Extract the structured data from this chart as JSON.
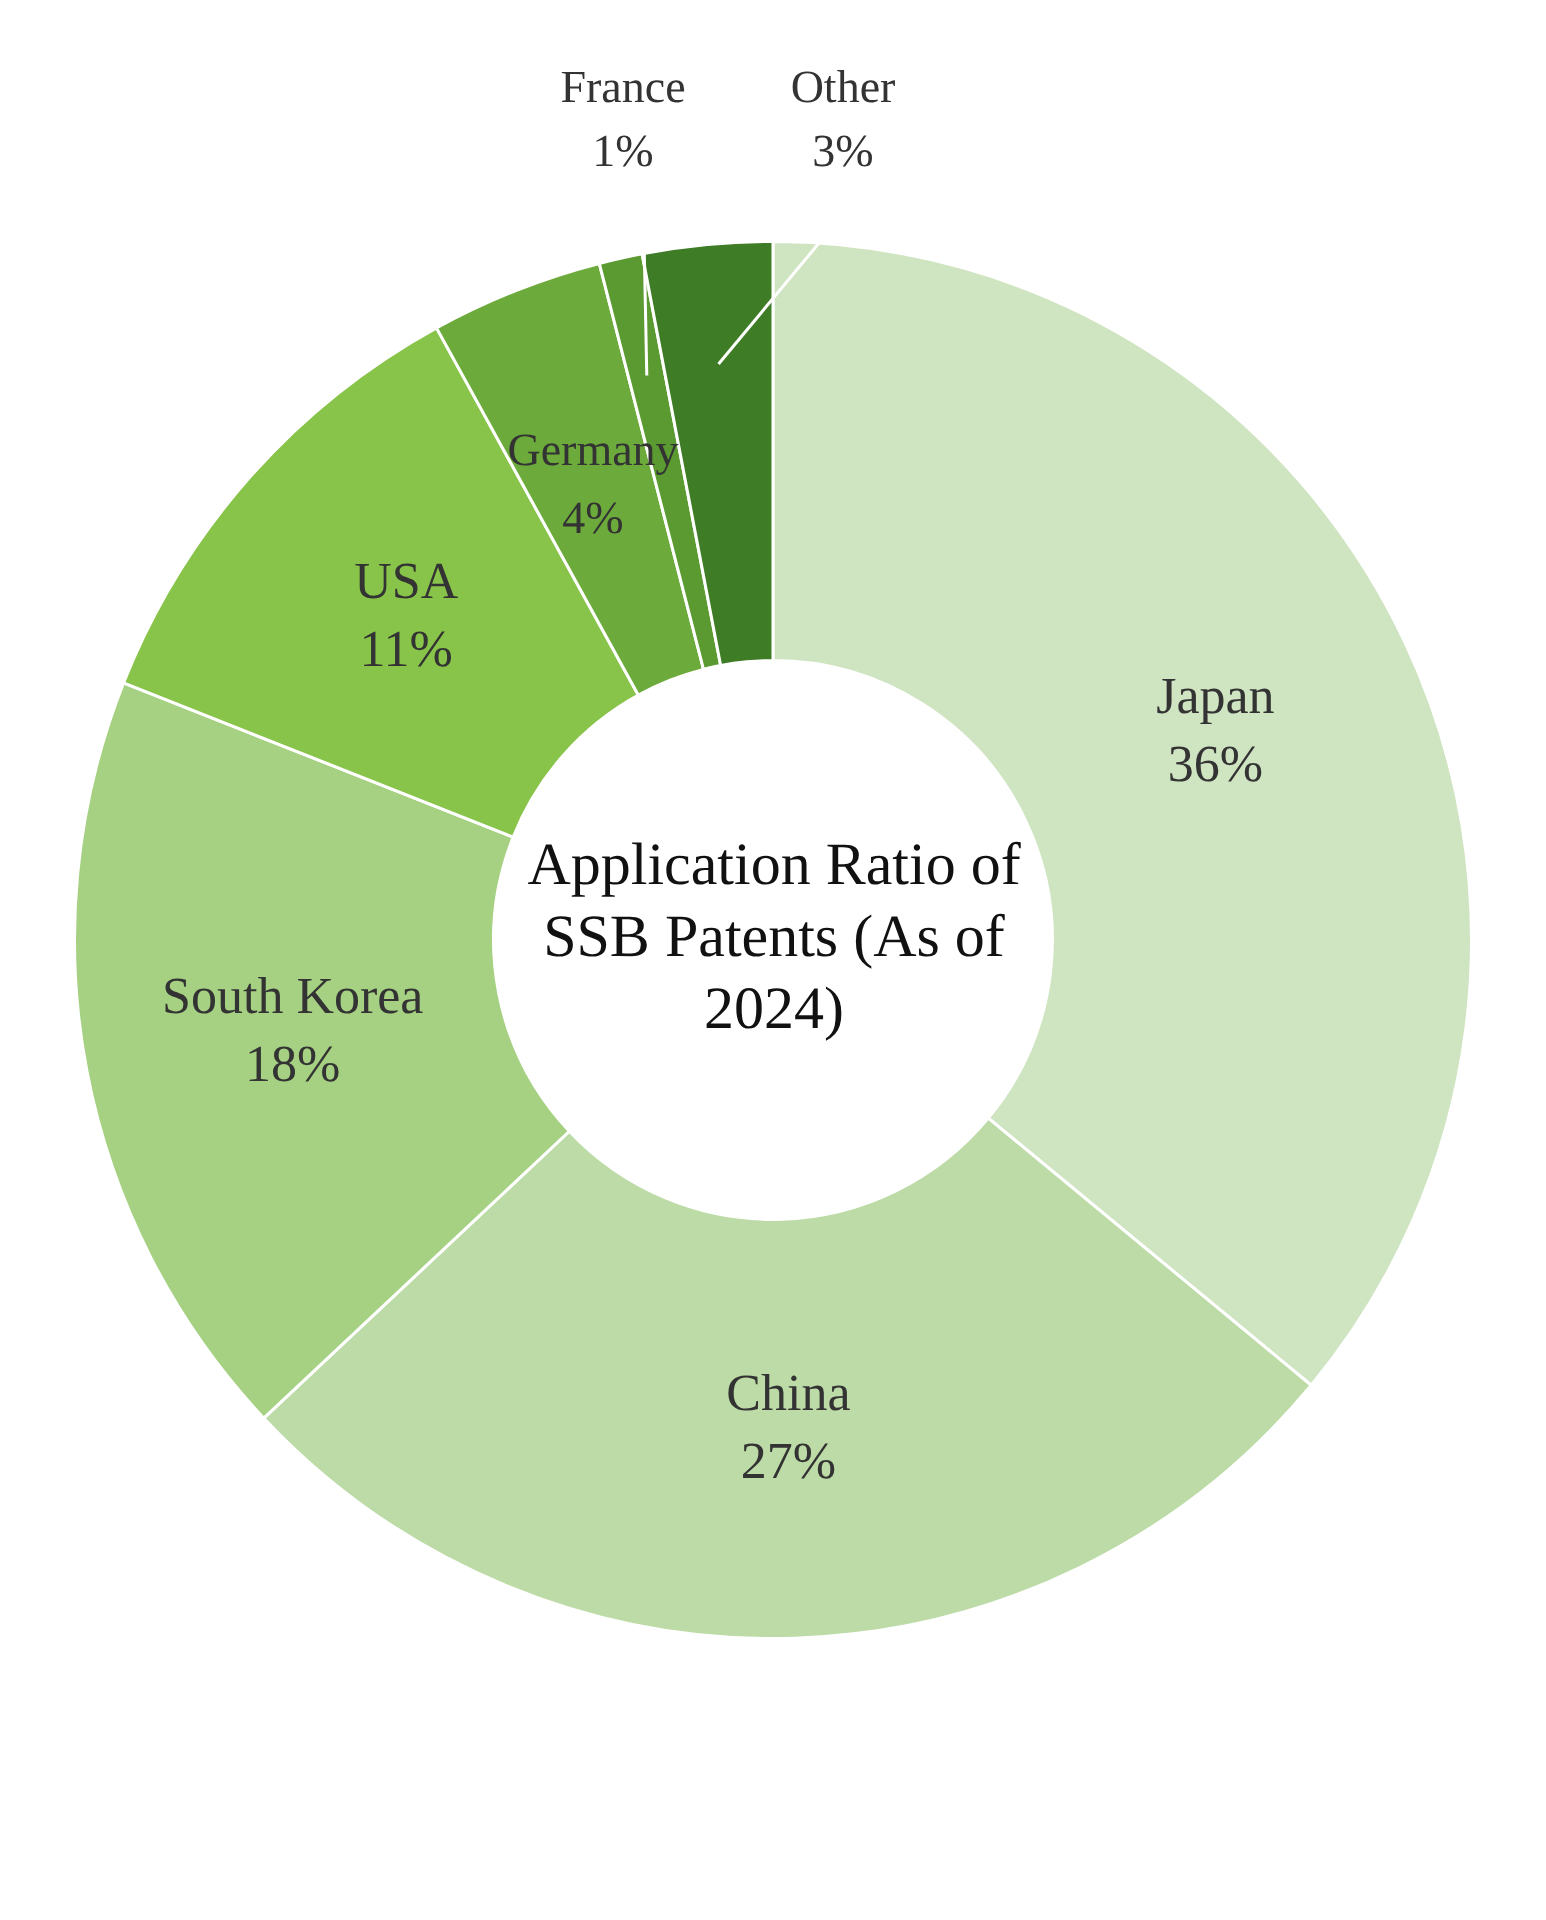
{
  "chart_data": {
    "type": "donut",
    "title": "Application Ratio of SSB Patents (As of 2024)",
    "categories": [
      "Japan",
      "China",
      "South Korea",
      "USA",
      "Germany",
      "France",
      "Other"
    ],
    "values": [
      36,
      27,
      18,
      11,
      4,
      1,
      3
    ],
    "value_labels": [
      "36%",
      "27%",
      "18%",
      "11%",
      "4%",
      "1%",
      "3%"
    ],
    "colors": [
      "#cfe4c1",
      "#bcdba6",
      "#a6d182",
      "#88c34a",
      "#6cab3b",
      "#5a9a30",
      "#3f7c26"
    ],
    "legend": false
  }
}
